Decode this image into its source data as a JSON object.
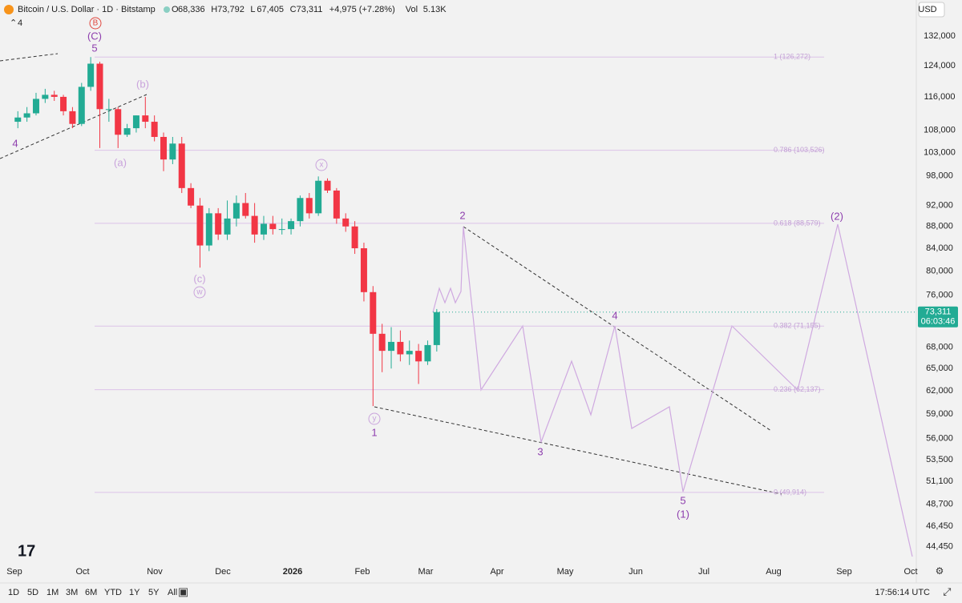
{
  "header": {
    "symbol": "Bitcoin / U.S. Dollar · 1D · Bitstamp",
    "ohlc": [
      {
        "label": "O",
        "value": "68,336"
      },
      {
        "label": "H",
        "value": "73,792"
      },
      {
        "label": "L",
        "value": "67,405"
      },
      {
        "label": "C",
        "value": "73,311"
      }
    ],
    "change": "+4,975 (+7.28%)",
    "volume_label": "Vol",
    "volume": "5.13K",
    "indicators_count": "4",
    "currency": "USD"
  },
  "chart_data": {
    "type": "candlestick",
    "log_scale": true,
    "up_color": "#22ab94",
    "down_color": "#f23645",
    "open": [
      110000,
      111000,
      112000,
      115500,
      116500,
      116000,
      112500,
      109500,
      118500,
      124500,
      113000,
      113000,
      107000,
      108500,
      111500,
      110000,
      106500,
      101500,
      105000,
      95500,
      92000,
      84500,
      90500,
      86500,
      89500,
      92500,
      90000,
      86500,
      88500,
      87500,
      87500,
      89000,
      93500,
      90500,
      97000,
      95000,
      89500,
      88000,
      84000,
      76500,
      70000,
      67500,
      68800,
      67000,
      67500,
      66000,
      68336
    ],
    "high": [
      112500,
      113500,
      117000,
      118000,
      117500,
      116500,
      113500,
      119500,
      126272,
      125000,
      115500,
      113500,
      109500,
      111500,
      116000,
      111500,
      107500,
      106500,
      106500,
      96500,
      93500,
      91500,
      91500,
      93000,
      94000,
      94500,
      92500,
      90000,
      90000,
      89500,
      89500,
      94000,
      94500,
      97900,
      97500,
      95500,
      90500,
      89000,
      85000,
      77500,
      71500,
      71000,
      70500,
      69000,
      68500,
      69000,
      73792
    ],
    "low": [
      108500,
      110000,
      111500,
      114500,
      115000,
      111500,
      108500,
      109000,
      117500,
      104000,
      110000,
      104000,
      106500,
      107500,
      108500,
      105500,
      99000,
      100500,
      94500,
      91500,
      80600,
      83500,
      85500,
      85500,
      88000,
      89500,
      85000,
      85500,
      86500,
      86500,
      86500,
      88000,
      89500,
      90000,
      94500,
      88500,
      87000,
      83000,
      75000,
      60000,
      64500,
      65000,
      66000,
      65500,
      62900,
      65500,
      67405
    ],
    "close": [
      111000,
      112000,
      115500,
      116500,
      116000,
      112500,
      109500,
      118500,
      124500,
      113000,
      113000,
      107000,
      108500,
      111500,
      110000,
      106500,
      101500,
      105000,
      95500,
      92000,
      84500,
      90500,
      86500,
      89500,
      92500,
      90000,
      86500,
      88500,
      87500,
      87500,
      89000,
      93500,
      90500,
      97000,
      95000,
      89500,
      88000,
      84000,
      76500,
      70000,
      67500,
      68800,
      67000,
      67500,
      66000,
      68336,
      73311
    ],
    "ylim": [
      42800,
      142600
    ],
    "yticks": [
      {
        "value": 132000,
        "label": "132,000"
      },
      {
        "value": 124000,
        "label": "124,000"
      },
      {
        "value": 116000,
        "label": "116,000"
      },
      {
        "value": 108000,
        "label": "108,000"
      },
      {
        "value": 103000,
        "label": "103,000"
      },
      {
        "value": 98000,
        "label": "98,000"
      },
      {
        "value": 92000,
        "label": "92,000"
      },
      {
        "value": 88000,
        "label": "88,000"
      },
      {
        "value": 84000,
        "label": "84,000"
      },
      {
        "value": 80000,
        "label": "80,000"
      },
      {
        "value": 76000,
        "label": "76,000"
      },
      {
        "value": 68000,
        "label": "68,000"
      },
      {
        "value": 65000,
        "label": "65,000"
      },
      {
        "value": 62000,
        "label": "62,000"
      },
      {
        "value": 59000,
        "label": "59,000"
      },
      {
        "value": 56000,
        "label": "56,000"
      },
      {
        "value": 53500,
        "label": "53,500"
      },
      {
        "value": 51100,
        "label": "51,100"
      },
      {
        "value": 48700,
        "label": "48,700"
      },
      {
        "value": 46450,
        "label": "46,450"
      },
      {
        "value": 44450,
        "label": "44,450"
      }
    ],
    "xticks": [
      "Sep",
      "Oct",
      "Nov",
      "Dec",
      "2026",
      "Feb",
      "Mar",
      "Apr",
      "May",
      "Jun",
      "Jul",
      "Aug",
      "Sep",
      "Oct"
    ],
    "fib_levels": [
      {
        "value": 126272,
        "label": "1 (126,272)"
      },
      {
        "value": 103526,
        "label": "0.786 (103,526)"
      },
      {
        "value": 88579,
        "label": "0.618 (88,579)"
      },
      {
        "value": 71155,
        "label": "0.382 (71,155)"
      },
      {
        "value": 62137,
        "label": "0.236 (62,137)"
      },
      {
        "value": 49914,
        "label": "0 (49,914)"
      }
    ],
    "fib_color": "#dcc3e8",
    "annotations": [
      "B",
      "(C)",
      "5",
      "4",
      "(a)",
      "(b)",
      "(c)",
      "w",
      "x",
      "y",
      "1",
      "2",
      "3",
      "4",
      "5",
      "(1)",
      "(2)"
    ],
    "last_price": {
      "value": 73311,
      "label": "73,311"
    },
    "countdown": "06:03:46"
  },
  "toolbar": {
    "ranges": [
      "1D",
      "5D",
      "1M",
      "3M",
      "6M",
      "YTD",
      "1Y",
      "5Y",
      "All"
    ],
    "time": "17:56:14 UTC"
  }
}
